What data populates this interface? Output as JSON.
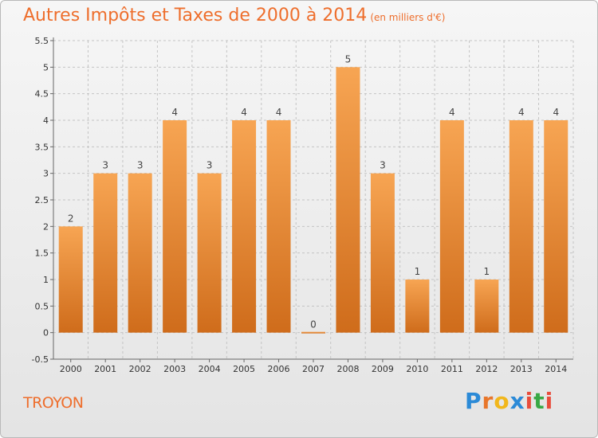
{
  "chart_data": {
    "type": "bar",
    "title": "Autres Impôts et Taxes de 2000 à 2014",
    "subtitle": "(en milliers d'€)",
    "categories": [
      "2000",
      "2001",
      "2002",
      "2003",
      "2004",
      "2005",
      "2006",
      "2007",
      "2008",
      "2009",
      "2010",
      "2011",
      "2012",
      "2013",
      "2014"
    ],
    "values": [
      2,
      3,
      3,
      4,
      3,
      4,
      4,
      0,
      5,
      3,
      1,
      4,
      1,
      4,
      4
    ],
    "data_labels": [
      "2",
      "3",
      "3",
      "4",
      "3",
      "4",
      "4",
      "0",
      "5",
      "3",
      "1",
      "4",
      "1",
      "4",
      "4"
    ],
    "ylim": [
      -0.5,
      5.5
    ],
    "yticks": [
      "-0.5",
      "0",
      "0.5",
      "1",
      "1.5",
      "2",
      "2.5",
      "3",
      "3.5",
      "4",
      "4.5",
      "5",
      "5.5"
    ],
    "ytick_values": [
      -0.5,
      0,
      0.5,
      1,
      1.5,
      2,
      2.5,
      3,
      3.5,
      4,
      4.5,
      5,
      5.5
    ],
    "grid": true,
    "bar_color_top": "#f7a553",
    "bar_color_bottom": "#cf6c1b",
    "grid_color": "#c4c4c4"
  },
  "footer": {
    "commune": "TROYON",
    "logo_letters": [
      "P",
      "r",
      "o",
      "x",
      "i",
      "t",
      "i"
    ],
    "logo_colors": [
      "#2b8ad7",
      "#e8762a",
      "#f1b71c",
      "#2b8ad7",
      "#e84d3c",
      "#39a845",
      "#e84d3c"
    ]
  }
}
